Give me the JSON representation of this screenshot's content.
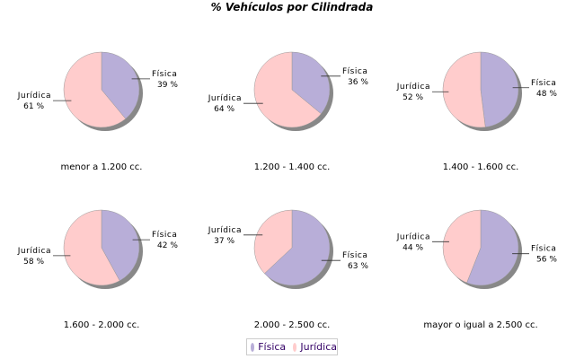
{
  "chart_data": {
    "type": "pie",
    "title": "% Vehículos por Cilindrada",
    "series_names": [
      "Física",
      "Jurídica"
    ],
    "colors": {
      "Física": "#b8aed8",
      "Jurídica": "#ffcccc",
      "shadow": "#888888"
    },
    "legend_position": "bottom",
    "pies": [
      {
        "label": "menor a 1.200 cc.",
        "values": [
          39,
          61
        ]
      },
      {
        "label": "1.200 - 1.400 cc.",
        "values": [
          36,
          64
        ]
      },
      {
        "label": "1.400 - 1.600 cc.",
        "values": [
          48,
          52
        ]
      },
      {
        "label": "1.600 - 2.000 cc.",
        "values": [
          42,
          58
        ]
      },
      {
        "label": "2.000 - 2.500 cc.",
        "values": [
          63,
          37
        ]
      },
      {
        "label": "mayor o igual a 2.500 cc.",
        "values": [
          56,
          44
        ]
      }
    ]
  },
  "legend": {
    "items": [
      "Física",
      "Jurídica"
    ]
  }
}
